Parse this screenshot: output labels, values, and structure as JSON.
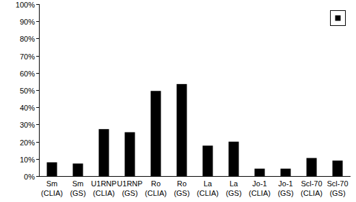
{
  "chart_data": {
    "type": "bar",
    "categories": [
      "Sm (CLIA)",
      "Sm (GS)",
      "U1RNP (CLIA)",
      "U1RNP (GS)",
      "Ro (CLIA)",
      "Ro (GS)",
      "La (CLIA)",
      "La (GS)",
      "Jo-1 (CLIA)",
      "Jo-1 (GS)",
      "Scl-70 (CLIA)",
      "Scl-70 (GS)"
    ],
    "values": [
      8,
      7.3,
      27.3,
      25.5,
      49.5,
      53.5,
      17.7,
      20,
      4.3,
      4.3,
      10.5,
      9
    ],
    "color": "#000000",
    "ylim": [
      0,
      100
    ],
    "yticks": [
      {
        "value": 0,
        "label": "0%"
      },
      {
        "value": 10,
        "label": "10%"
      },
      {
        "value": 20,
        "label": "20%"
      },
      {
        "value": 30,
        "label": "30%"
      },
      {
        "value": 40,
        "label": "40%"
      },
      {
        "value": 50,
        "label": "50%"
      },
      {
        "value": 60,
        "label": "60%"
      },
      {
        "value": 70,
        "label": "70%"
      },
      {
        "value": 80,
        "label": "80%"
      },
      {
        "value": 90,
        "label": "90%"
      },
      {
        "value": 100,
        "label": "100%"
      }
    ],
    "grid": false,
    "legend": "top-right"
  }
}
